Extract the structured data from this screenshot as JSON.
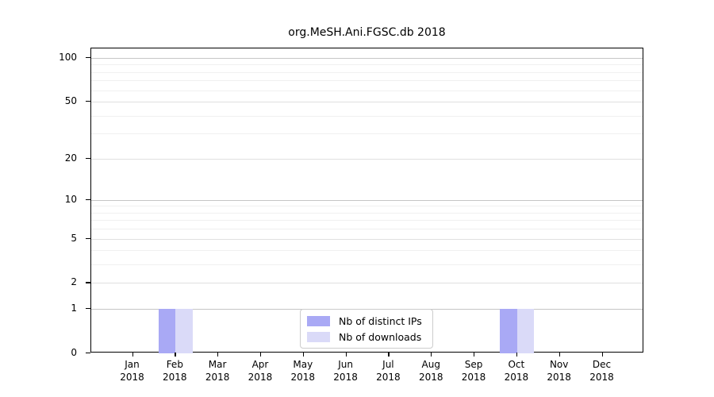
{
  "window": {
    "background": "#ffffff"
  },
  "chart_data": {
    "type": "bar",
    "title": "org.MeSH.Ani.FGSC.db 2018",
    "categories": [
      "Jan",
      "Feb",
      "Mar",
      "Apr",
      "May",
      "Jun",
      "Jul",
      "Aug",
      "Sep",
      "Oct",
      "Nov",
      "Dec"
    ],
    "category_year": "2018",
    "series": [
      {
        "name": "Nb of distinct IPs",
        "color": "#a9a9f5",
        "values": [
          0,
          1,
          0,
          0,
          0,
          0,
          0,
          0,
          0,
          1,
          0,
          0
        ]
      },
      {
        "name": "Nb of downloads",
        "color": "#dadaf8",
        "values": [
          0,
          1,
          0,
          0,
          0,
          0,
          0,
          0,
          0,
          1,
          0,
          0
        ]
      }
    ],
    "xlabel": "",
    "ylabel": "",
    "yscale": "log1p",
    "y_ticks": [
      0,
      1,
      2,
      5,
      10,
      20,
      50,
      100
    ],
    "y_minor_gridlines": [
      3,
      4,
      6,
      7,
      8,
      9,
      30,
      40,
      60,
      70,
      80,
      90
    ],
    "ylim": [
      0,
      116
    ],
    "grid": "horizontal",
    "legend_position": "bottom-center"
  },
  "colors": {
    "axis": "#000000",
    "grid_decade": "#c6c6c6",
    "grid_major": "#e0e0e0",
    "grid_minor": "#f0f0f0"
  }
}
